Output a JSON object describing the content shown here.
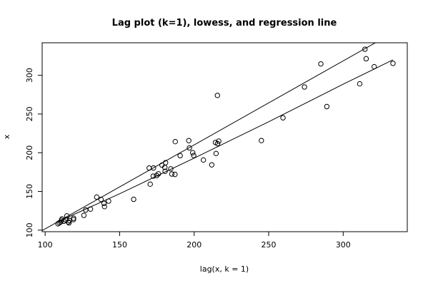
{
  "chart_data": {
    "type": "scatter",
    "title": "Lag plot (k=1), lowess, and regression line",
    "xlabel": "lag(x, k = 1)",
    "ylabel": "x",
    "xlim": [
      98,
      343
    ],
    "ylim": [
      98,
      342
    ],
    "x_ticks": [
      100,
      150,
      200,
      250,
      300
    ],
    "y_ticks": [
      100,
      150,
      200,
      250,
      300
    ],
    "grid": false,
    "points": [
      [
        108.6,
        108.2
      ],
      [
        109.5,
        109.4
      ],
      [
        110.4,
        110.5
      ],
      [
        111.0,
        112.8
      ],
      [
        111.3,
        114.5
      ],
      [
        112.5,
        111.5
      ],
      [
        113.8,
        113.3
      ],
      [
        114.6,
        118.4
      ],
      [
        115.5,
        110.7
      ],
      [
        116.0,
        109.4
      ],
      [
        116.4,
        112.4
      ],
      [
        119.0,
        113.6
      ],
      [
        119.1,
        115.4
      ],
      [
        126.0,
        119.1
      ],
      [
        127.2,
        126.0
      ],
      [
        130.4,
        127.2
      ],
      [
        134.6,
        142.7
      ],
      [
        137.5,
        139.7
      ],
      [
        139.5,
        134.5
      ],
      [
        139.8,
        130.4
      ],
      [
        142.6,
        137.5
      ],
      [
        159.4,
        139.8
      ],
      [
        169.8,
        180.2
      ],
      [
        170.5,
        159.4
      ],
      [
        172.5,
        169.8
      ],
      [
        172.7,
        180.3
      ],
      [
        174.8,
        170.5
      ],
      [
        176.0,
        172.7
      ],
      [
        178.4,
        184.0
      ],
      [
        180.3,
        181.1
      ],
      [
        180.5,
        176.0
      ],
      [
        180.8,
        187.1
      ],
      [
        184.3,
        179.2
      ],
      [
        185.0,
        172.5
      ],
      [
        187.1,
        172.0
      ],
      [
        187.3,
        214.3
      ],
      [
        190.6,
        196.2
      ],
      [
        196.4,
        215.6
      ],
      [
        196.8,
        206.2
      ],
      [
        199.0,
        200.0
      ],
      [
        199.7,
        196.4
      ],
      [
        206.2,
        190.6
      ],
      [
        211.8,
        184.3
      ],
      [
        214.3,
        213.2
      ],
      [
        214.7,
        199.0
      ],
      [
        215.6,
        274.0
      ],
      [
        215.7,
        211.8
      ],
      [
        216.5,
        215.0
      ],
      [
        245.1,
        215.7
      ],
      [
        259.6,
        245.1
      ],
      [
        274.0,
        284.9
      ],
      [
        285.0,
        314.7
      ],
      [
        289.0,
        259.6
      ],
      [
        311.1,
        289.0
      ],
      [
        314.6,
        333.7
      ],
      [
        315.4,
        321.4
      ],
      [
        320.8,
        311.1
      ],
      [
        333.4,
        315.4
      ]
    ],
    "regression_line": {
      "slope": 1.085,
      "intercept": -6.9
    },
    "lowess_curve": [
      [
        108.6,
        111.0
      ],
      [
        150.0,
        147.0
      ],
      [
        200.0,
        193.0
      ],
      [
        250.0,
        240.0
      ],
      [
        300.0,
        288.5
      ],
      [
        333.4,
        320.0
      ]
    ]
  }
}
